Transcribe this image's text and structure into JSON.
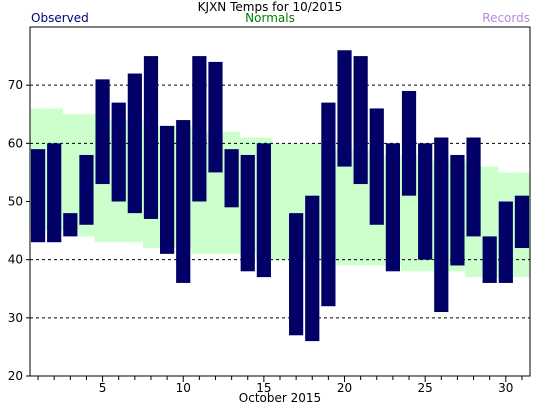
{
  "chart_data": {
    "type": "bar",
    "title": "KJXN Temps for 10/2015",
    "xlabel": "October 2015",
    "ylabel": "",
    "xlim": [
      0.5,
      31.5
    ],
    "ylim": [
      20,
      80
    ],
    "yticks": [
      20,
      30,
      40,
      50,
      60,
      70
    ],
    "xticks": [
      5,
      10,
      15,
      20,
      25,
      30
    ],
    "grid": "horizontal dashed at 30, 40, 60, 70",
    "legend": [
      {
        "name": "Observed",
        "color": "#000080",
        "placement": "top-left"
      },
      {
        "name": "Normals",
        "color": "#008000",
        "placement": "top-center"
      },
      {
        "name": "Records",
        "color": "#bb88dd",
        "placement": "top-right"
      }
    ],
    "days": [
      1,
      2,
      3,
      4,
      5,
      6,
      7,
      8,
      9,
      10,
      11,
      12,
      13,
      14,
      15,
      16,
      17,
      18,
      19,
      20,
      21,
      22,
      23,
      24,
      25,
      26,
      27,
      28,
      29,
      30,
      31
    ],
    "series": [
      {
        "name": "Observed",
        "type": "floating-bar",
        "high": [
          59,
          60,
          48,
          58,
          71,
          67,
          72,
          75,
          63,
          64,
          75,
          74,
          59,
          58,
          60,
          null,
          48,
          51,
          67,
          76,
          75,
          66,
          60,
          69,
          60,
          61,
          58,
          61,
          44,
          50,
          51
        ],
        "low": [
          43,
          43,
          44,
          46,
          53,
          50,
          48,
          47,
          41,
          36,
          50,
          55,
          49,
          38,
          37,
          null,
          27,
          26,
          32,
          56,
          53,
          46,
          38,
          51,
          40,
          31,
          39,
          44,
          36,
          36,
          42
        ]
      },
      {
        "name": "Normals",
        "type": "band",
        "high": [
          66,
          66,
          65,
          65,
          64,
          64,
          64,
          63,
          63,
          63,
          62,
          62,
          62,
          61,
          61,
          60,
          60,
          60,
          59,
          59,
          59,
          58,
          58,
          58,
          57,
          57,
          57,
          56,
          56,
          55,
          55
        ],
        "low": [
          45,
          45,
          45,
          44,
          43,
          43,
          43,
          42,
          42,
          42,
          41,
          41,
          41,
          41,
          40,
          40,
          40,
          40,
          40,
          39,
          39,
          39,
          39,
          38,
          38,
          38,
          38,
          37,
          37,
          37,
          37
        ]
      }
    ],
    "colors": {
      "observed": "#000066",
      "normals": "#ccffcc",
      "grid": "#000000",
      "frame": "#000000"
    }
  }
}
